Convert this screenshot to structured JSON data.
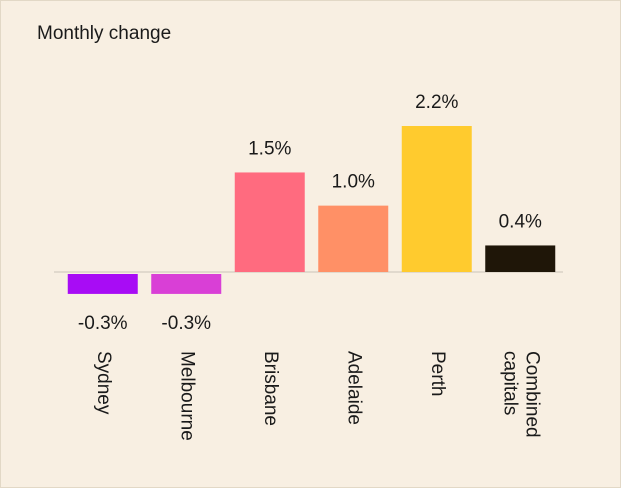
{
  "chart_data": {
    "type": "bar",
    "title": "Monthly change",
    "categories": [
      "Sydney",
      "Melbourne",
      "Brisbane",
      "Adelaide",
      "Perth",
      "Combined capitals"
    ],
    "values": [
      -0.3,
      -0.3,
      1.5,
      1.0,
      2.2,
      0.4
    ],
    "value_labels": [
      "-0.3%",
      "-0.3%",
      "1.5%",
      "1.0%",
      "2.2%",
      "0.4%"
    ],
    "colors": [
      "#a80cf5",
      "#d93fd6",
      "#ff6b7f",
      "#ff9066",
      "#ffcb2e",
      "#1f1608"
    ]
  }
}
